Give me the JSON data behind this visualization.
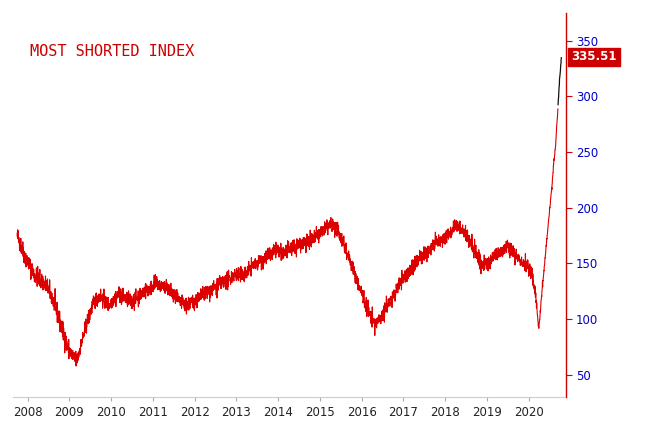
{
  "title": "MOST SHORTED INDEX",
  "title_color": "#cc0000",
  "title_fontsize": 11,
  "last_value": 335.51,
  "last_value_label": "335.51",
  "ylabel_color": "#0000cc",
  "line_color": "#dd0000",
  "spike_color": "#111111",
  "yticks": [
    50,
    100,
    150,
    200,
    250,
    300,
    350
  ],
  "ylim": [
    30,
    375
  ],
  "xlim_start": 2007.65,
  "xlim_end": 2020.88,
  "xticks": [
    2008,
    2009,
    2010,
    2011,
    2012,
    2013,
    2014,
    2015,
    2016,
    2017,
    2018,
    2019,
    2020
  ],
  "background_color": "#ffffff",
  "anchors": [
    [
      2007.75,
      175
    ],
    [
      2007.85,
      165
    ],
    [
      2007.95,
      155
    ],
    [
      2008.05,
      148
    ],
    [
      2008.15,
      140
    ],
    [
      2008.3,
      135
    ],
    [
      2008.45,
      130
    ],
    [
      2008.6,
      118
    ],
    [
      2008.75,
      100
    ],
    [
      2008.85,
      88
    ],
    [
      2008.95,
      75
    ],
    [
      2009.05,
      68
    ],
    [
      2009.15,
      62
    ],
    [
      2009.2,
      65
    ],
    [
      2009.3,
      80
    ],
    [
      2009.45,
      100
    ],
    [
      2009.55,
      112
    ],
    [
      2009.65,
      118
    ],
    [
      2009.75,
      120
    ],
    [
      2009.85,
      115
    ],
    [
      2009.95,
      112
    ],
    [
      2010.05,
      118
    ],
    [
      2010.2,
      122
    ],
    [
      2010.35,
      118
    ],
    [
      2010.5,
      115
    ],
    [
      2010.65,
      120
    ],
    [
      2010.8,
      125
    ],
    [
      2010.95,
      128
    ],
    [
      2011.1,
      132
    ],
    [
      2011.2,
      130
    ],
    [
      2011.3,
      128
    ],
    [
      2011.4,
      125
    ],
    [
      2011.5,
      120
    ],
    [
      2011.65,
      115
    ],
    [
      2011.8,
      112
    ],
    [
      2011.95,
      115
    ],
    [
      2012.1,
      118
    ],
    [
      2012.2,
      122
    ],
    [
      2012.35,
      125
    ],
    [
      2012.5,
      128
    ],
    [
      2012.65,
      132
    ],
    [
      2012.8,
      135
    ],
    [
      2012.95,
      140
    ],
    [
      2013.1,
      138
    ],
    [
      2013.25,
      142
    ],
    [
      2013.4,
      148
    ],
    [
      2013.55,
      152
    ],
    [
      2013.7,
      155
    ],
    [
      2013.85,
      158
    ],
    [
      2013.95,
      162
    ],
    [
      2014.1,
      158
    ],
    [
      2014.25,
      162
    ],
    [
      2014.4,
      165
    ],
    [
      2014.55,
      168
    ],
    [
      2014.65,
      170
    ],
    [
      2014.75,
      168
    ],
    [
      2014.85,
      172
    ],
    [
      2014.95,
      175
    ],
    [
      2015.05,
      178
    ],
    [
      2015.15,
      182
    ],
    [
      2015.25,
      185
    ],
    [
      2015.35,
      183
    ],
    [
      2015.45,
      178
    ],
    [
      2015.55,
      170
    ],
    [
      2015.65,
      160
    ],
    [
      2015.75,
      150
    ],
    [
      2015.85,
      138
    ],
    [
      2015.95,
      128
    ],
    [
      2016.05,
      118
    ],
    [
      2016.15,
      108
    ],
    [
      2016.25,
      100
    ],
    [
      2016.32,
      95
    ],
    [
      2016.42,
      100
    ],
    [
      2016.55,
      108
    ],
    [
      2016.65,
      115
    ],
    [
      2016.75,
      120
    ],
    [
      2016.85,
      128
    ],
    [
      2016.95,
      135
    ],
    [
      2017.1,
      140
    ],
    [
      2017.25,
      148
    ],
    [
      2017.4,
      155
    ],
    [
      2017.55,
      160
    ],
    [
      2017.7,
      165
    ],
    [
      2017.85,
      170
    ],
    [
      2017.95,
      172
    ],
    [
      2018.05,
      175
    ],
    [
      2018.15,
      180
    ],
    [
      2018.25,
      185
    ],
    [
      2018.35,
      182
    ],
    [
      2018.45,
      178
    ],
    [
      2018.55,
      172
    ],
    [
      2018.65,
      165
    ],
    [
      2018.75,
      158
    ],
    [
      2018.85,
      150
    ],
    [
      2018.95,
      148
    ],
    [
      2019.05,
      152
    ],
    [
      2019.15,
      155
    ],
    [
      2019.25,
      158
    ],
    [
      2019.35,
      162
    ],
    [
      2019.45,
      165
    ],
    [
      2019.55,
      162
    ],
    [
      2019.65,
      158
    ],
    [
      2019.75,
      155
    ],
    [
      2019.85,
      152
    ],
    [
      2019.95,
      148
    ],
    [
      2020.05,
      142
    ],
    [
      2020.1,
      135
    ],
    [
      2020.15,
      125
    ],
    [
      2020.19,
      112
    ],
    [
      2020.22,
      98
    ],
    [
      2020.24,
      92
    ],
    [
      2020.26,
      100
    ],
    [
      2020.3,
      118
    ],
    [
      2020.35,
      138
    ],
    [
      2020.4,
      158
    ],
    [
      2020.45,
      178
    ],
    [
      2020.5,
      198
    ],
    [
      2020.55,
      218
    ],
    [
      2020.58,
      230
    ],
    [
      2020.6,
      242
    ],
    [
      2020.62,
      248
    ],
    [
      2020.64,
      255
    ],
    [
      2020.66,
      268
    ],
    [
      2020.68,
      278
    ],
    [
      2020.7,
      290
    ],
    [
      2020.72,
      305
    ],
    [
      2020.74,
      315
    ],
    [
      2020.76,
      325
    ],
    [
      2020.78,
      335
    ]
  ],
  "black_start_time": 2020.7,
  "noise_seed": 42,
  "noise_std": 3.5
}
